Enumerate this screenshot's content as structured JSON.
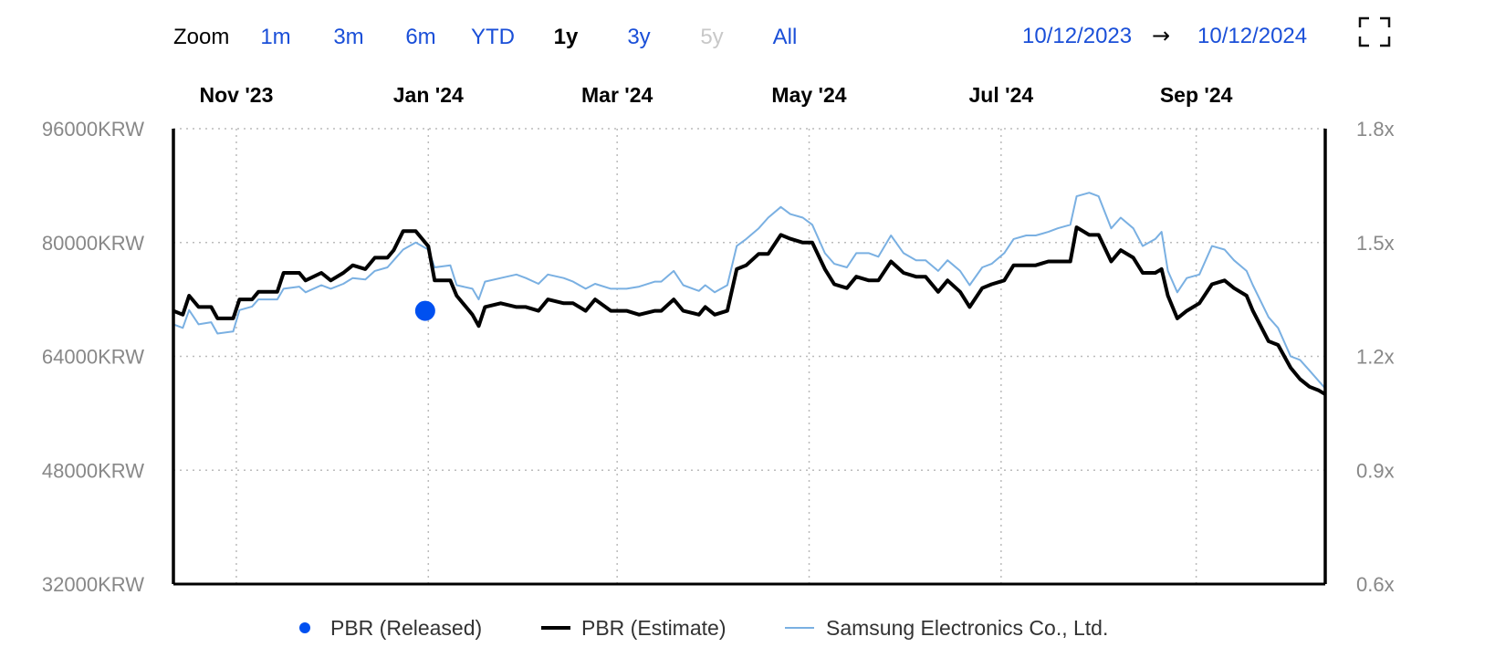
{
  "toolbar": {
    "zoom_label": "Zoom",
    "zoom_options": [
      {
        "label": "1m",
        "state": "enabled"
      },
      {
        "label": "3m",
        "state": "enabled"
      },
      {
        "label": "6m",
        "state": "enabled"
      },
      {
        "label": "YTD",
        "state": "enabled"
      },
      {
        "label": "1y",
        "state": "selected"
      },
      {
        "label": "3y",
        "state": "enabled"
      },
      {
        "label": "5y",
        "state": "disabled"
      },
      {
        "label": "All",
        "state": "enabled"
      }
    ],
    "range_start": "10/12/2023",
    "range_arrow": "→",
    "range_end": "10/12/2024",
    "fullscreen_icon": "fullscreen-icon"
  },
  "colors": {
    "accent": "#1a4fd8",
    "selected": "#000000",
    "disabled": "#c8c8c8",
    "estimate": "#000000",
    "samsung": "#7ab0e2",
    "released": "#0050f0",
    "axis_text": "#888888",
    "grid": "#bbbbbb"
  },
  "chart_data": {
    "type": "line",
    "title": "",
    "x_range": [
      "2023-10-12",
      "2024-10-12"
    ],
    "x_ticks": [
      {
        "label": "Nov '23",
        "date": "2023-11-01"
      },
      {
        "label": "Jan '24",
        "date": "2024-01-01"
      },
      {
        "label": "Mar '24",
        "date": "2024-03-01"
      },
      {
        "label": "May '24",
        "date": "2024-05-01"
      },
      {
        "label": "Jul '24",
        "date": "2024-07-01"
      },
      {
        "label": "Sep '24",
        "date": "2024-09-01"
      }
    ],
    "y_left": {
      "min": 32000,
      "max": 96000,
      "ticks": [
        "32000KRW",
        "48000KRW",
        "64000KRW",
        "80000KRW",
        "96000KRW"
      ],
      "tick_values": [
        32000,
        48000,
        64000,
        80000,
        96000
      ]
    },
    "y_right": {
      "min": 0.6,
      "max": 1.8,
      "ticks": [
        "0.6x",
        "0.9x",
        "1.2x",
        "1.5x",
        "1.8x"
      ],
      "tick_values": [
        0.6,
        0.9,
        1.2,
        1.5,
        1.8
      ]
    },
    "grid": true,
    "legend_position": "bottom-center",
    "series": [
      {
        "name": "PBR (Released)",
        "kind": "marker",
        "axis": "right",
        "points": [
          {
            "x": "2023-12-31",
            "y": 1.32
          }
        ]
      },
      {
        "name": "PBR (Estimate)",
        "kind": "line-thick",
        "axis": "right",
        "points": [
          [
            "2023-10-12",
            1.32
          ],
          [
            "2023-10-15",
            1.31
          ],
          [
            "2023-10-17",
            1.36
          ],
          [
            "2023-10-20",
            1.33
          ],
          [
            "2023-10-24",
            1.33
          ],
          [
            "2023-10-26",
            1.3
          ],
          [
            "2023-10-31",
            1.3
          ],
          [
            "2023-11-02",
            1.35
          ],
          [
            "2023-11-06",
            1.35
          ],
          [
            "2023-11-08",
            1.37
          ],
          [
            "2023-11-14",
            1.37
          ],
          [
            "2023-11-16",
            1.42
          ],
          [
            "2023-11-21",
            1.42
          ],
          [
            "2023-11-23",
            1.4
          ],
          [
            "2023-11-28",
            1.42
          ],
          [
            "2023-12-01",
            1.4
          ],
          [
            "2023-12-05",
            1.42
          ],
          [
            "2023-12-08",
            1.44
          ],
          [
            "2023-12-12",
            1.43
          ],
          [
            "2023-12-15",
            1.46
          ],
          [
            "2023-12-19",
            1.46
          ],
          [
            "2023-12-21",
            1.48
          ],
          [
            "2023-12-24",
            1.53
          ],
          [
            "2023-12-28",
            1.53
          ],
          [
            "2024-01-01",
            1.49
          ],
          [
            "2024-01-03",
            1.4
          ],
          [
            "2024-01-08",
            1.4
          ],
          [
            "2024-01-10",
            1.36
          ],
          [
            "2024-01-15",
            1.31
          ],
          [
            "2024-01-17",
            1.28
          ],
          [
            "2024-01-19",
            1.33
          ],
          [
            "2024-01-24",
            1.34
          ],
          [
            "2024-01-29",
            1.33
          ],
          [
            "2024-02-01",
            1.33
          ],
          [
            "2024-02-05",
            1.32
          ],
          [
            "2024-02-08",
            1.35
          ],
          [
            "2024-02-13",
            1.34
          ],
          [
            "2024-02-16",
            1.34
          ],
          [
            "2024-02-20",
            1.32
          ],
          [
            "2024-02-23",
            1.35
          ],
          [
            "2024-02-28",
            1.32
          ],
          [
            "2024-03-04",
            1.32
          ],
          [
            "2024-03-08",
            1.31
          ],
          [
            "2024-03-13",
            1.32
          ],
          [
            "2024-03-15",
            1.32
          ],
          [
            "2024-03-19",
            1.35
          ],
          [
            "2024-03-22",
            1.32
          ],
          [
            "2024-03-27",
            1.31
          ],
          [
            "2024-03-29",
            1.33
          ],
          [
            "2024-04-01",
            1.31
          ],
          [
            "2024-04-05",
            1.32
          ],
          [
            "2024-04-08",
            1.43
          ],
          [
            "2024-04-11",
            1.44
          ],
          [
            "2024-04-15",
            1.47
          ],
          [
            "2024-04-18",
            1.47
          ],
          [
            "2024-04-22",
            1.52
          ],
          [
            "2024-04-25",
            1.51
          ],
          [
            "2024-04-29",
            1.5
          ],
          [
            "2024-05-02",
            1.5
          ],
          [
            "2024-05-06",
            1.43
          ],
          [
            "2024-05-09",
            1.39
          ],
          [
            "2024-05-13",
            1.38
          ],
          [
            "2024-05-16",
            1.41
          ],
          [
            "2024-05-20",
            1.4
          ],
          [
            "2024-05-23",
            1.4
          ],
          [
            "2024-05-27",
            1.45
          ],
          [
            "2024-05-31",
            1.42
          ],
          [
            "2024-06-04",
            1.41
          ],
          [
            "2024-06-07",
            1.41
          ],
          [
            "2024-06-11",
            1.37
          ],
          [
            "2024-06-14",
            1.4
          ],
          [
            "2024-06-18",
            1.37
          ],
          [
            "2024-06-21",
            1.33
          ],
          [
            "2024-06-25",
            1.38
          ],
          [
            "2024-06-28",
            1.39
          ],
          [
            "2024-07-02",
            1.4
          ],
          [
            "2024-07-05",
            1.44
          ],
          [
            "2024-07-09",
            1.44
          ],
          [
            "2024-07-12",
            1.44
          ],
          [
            "2024-07-16",
            1.45
          ],
          [
            "2024-07-19",
            1.45
          ],
          [
            "2024-07-23",
            1.45
          ],
          [
            "2024-07-25",
            1.54
          ],
          [
            "2024-07-29",
            1.52
          ],
          [
            "2024-08-01",
            1.52
          ],
          [
            "2024-08-05",
            1.45
          ],
          [
            "2024-08-08",
            1.48
          ],
          [
            "2024-08-12",
            1.46
          ],
          [
            "2024-08-15",
            1.42
          ],
          [
            "2024-08-19",
            1.42
          ],
          [
            "2024-08-21",
            1.43
          ],
          [
            "2024-08-23",
            1.36
          ],
          [
            "2024-08-26",
            1.3
          ],
          [
            "2024-08-29",
            1.32
          ],
          [
            "2024-09-02",
            1.34
          ],
          [
            "2024-09-06",
            1.39
          ],
          [
            "2024-09-10",
            1.4
          ],
          [
            "2024-09-13",
            1.38
          ],
          [
            "2024-09-17",
            1.36
          ],
          [
            "2024-09-19",
            1.32
          ],
          [
            "2024-09-24",
            1.24
          ],
          [
            "2024-09-27",
            1.23
          ],
          [
            "2024-10-01",
            1.17
          ],
          [
            "2024-10-04",
            1.14
          ],
          [
            "2024-10-07",
            1.12
          ],
          [
            "2024-10-10",
            1.11
          ],
          [
            "2024-10-12",
            1.1
          ]
        ]
      },
      {
        "name": "Samsung Electronics Co., Ltd.",
        "kind": "line-thin",
        "axis": "left",
        "points": [
          [
            "2023-10-12",
            68500
          ],
          [
            "2023-10-15",
            68000
          ],
          [
            "2023-10-17",
            70500
          ],
          [
            "2023-10-20",
            68500
          ],
          [
            "2023-10-24",
            68800
          ],
          [
            "2023-10-26",
            67200
          ],
          [
            "2023-10-31",
            67500
          ],
          [
            "2023-11-02",
            70500
          ],
          [
            "2023-11-06",
            71000
          ],
          [
            "2023-11-08",
            72000
          ],
          [
            "2023-11-14",
            72000
          ],
          [
            "2023-11-16",
            73500
          ],
          [
            "2023-11-21",
            73800
          ],
          [
            "2023-11-23",
            73000
          ],
          [
            "2023-11-28",
            74000
          ],
          [
            "2023-12-01",
            73500
          ],
          [
            "2023-12-05",
            74200
          ],
          [
            "2023-12-08",
            75000
          ],
          [
            "2023-12-12",
            74800
          ],
          [
            "2023-12-15",
            76000
          ],
          [
            "2023-12-19",
            76500
          ],
          [
            "2023-12-21",
            77500
          ],
          [
            "2023-12-24",
            79000
          ],
          [
            "2023-12-28",
            80000
          ],
          [
            "2024-01-01",
            79000
          ],
          [
            "2024-01-03",
            76500
          ],
          [
            "2024-01-08",
            76800
          ],
          [
            "2024-01-10",
            74000
          ],
          [
            "2024-01-15",
            73500
          ],
          [
            "2024-01-17",
            72000
          ],
          [
            "2024-01-19",
            74500
          ],
          [
            "2024-01-24",
            75000
          ],
          [
            "2024-01-29",
            75500
          ],
          [
            "2024-02-01",
            75000
          ],
          [
            "2024-02-05",
            74200
          ],
          [
            "2024-02-08",
            75500
          ],
          [
            "2024-02-13",
            75000
          ],
          [
            "2024-02-16",
            74500
          ],
          [
            "2024-02-20",
            73500
          ],
          [
            "2024-02-23",
            74200
          ],
          [
            "2024-02-28",
            73500
          ],
          [
            "2024-03-04",
            73500
          ],
          [
            "2024-03-08",
            73800
          ],
          [
            "2024-03-13",
            74500
          ],
          [
            "2024-03-15",
            74500
          ],
          [
            "2024-03-19",
            76000
          ],
          [
            "2024-03-22",
            74000
          ],
          [
            "2024-03-27",
            73200
          ],
          [
            "2024-03-29",
            74000
          ],
          [
            "2024-04-01",
            73000
          ],
          [
            "2024-04-05",
            74000
          ],
          [
            "2024-04-08",
            79500
          ],
          [
            "2024-04-11",
            80500
          ],
          [
            "2024-04-15",
            82000
          ],
          [
            "2024-04-18",
            83500
          ],
          [
            "2024-04-22",
            85000
          ],
          [
            "2024-04-25",
            84000
          ],
          [
            "2024-04-29",
            83500
          ],
          [
            "2024-05-02",
            82500
          ],
          [
            "2024-05-06",
            78500
          ],
          [
            "2024-05-09",
            77000
          ],
          [
            "2024-05-13",
            76500
          ],
          [
            "2024-05-16",
            78500
          ],
          [
            "2024-05-20",
            78500
          ],
          [
            "2024-05-23",
            78000
          ],
          [
            "2024-05-27",
            81000
          ],
          [
            "2024-05-31",
            78500
          ],
          [
            "2024-06-04",
            77500
          ],
          [
            "2024-06-07",
            77500
          ],
          [
            "2024-06-11",
            76000
          ],
          [
            "2024-06-14",
            77500
          ],
          [
            "2024-06-18",
            76000
          ],
          [
            "2024-06-21",
            74000
          ],
          [
            "2024-06-25",
            76500
          ],
          [
            "2024-06-28",
            77000
          ],
          [
            "2024-07-02",
            78500
          ],
          [
            "2024-07-05",
            80500
          ],
          [
            "2024-07-09",
            81000
          ],
          [
            "2024-07-12",
            81000
          ],
          [
            "2024-07-16",
            81500
          ],
          [
            "2024-07-19",
            82000
          ],
          [
            "2024-07-23",
            82500
          ],
          [
            "2024-07-25",
            86500
          ],
          [
            "2024-07-29",
            87000
          ],
          [
            "2024-08-01",
            86500
          ],
          [
            "2024-08-05",
            82000
          ],
          [
            "2024-08-08",
            83500
          ],
          [
            "2024-08-12",
            82000
          ],
          [
            "2024-08-15",
            79500
          ],
          [
            "2024-08-19",
            80500
          ],
          [
            "2024-08-21",
            81500
          ],
          [
            "2024-08-23",
            76000
          ],
          [
            "2024-08-26",
            73000
          ],
          [
            "2024-08-29",
            75000
          ],
          [
            "2024-09-02",
            75500
          ],
          [
            "2024-09-06",
            79500
          ],
          [
            "2024-09-10",
            79000
          ],
          [
            "2024-09-13",
            77500
          ],
          [
            "2024-09-17",
            76000
          ],
          [
            "2024-09-19",
            74000
          ],
          [
            "2024-09-24",
            69500
          ],
          [
            "2024-09-27",
            68000
          ],
          [
            "2024-10-01",
            64000
          ],
          [
            "2024-10-04",
            63500
          ],
          [
            "2024-10-07",
            62000
          ],
          [
            "2024-10-10",
            60500
          ],
          [
            "2024-10-12",
            59500
          ]
        ]
      }
    ]
  }
}
